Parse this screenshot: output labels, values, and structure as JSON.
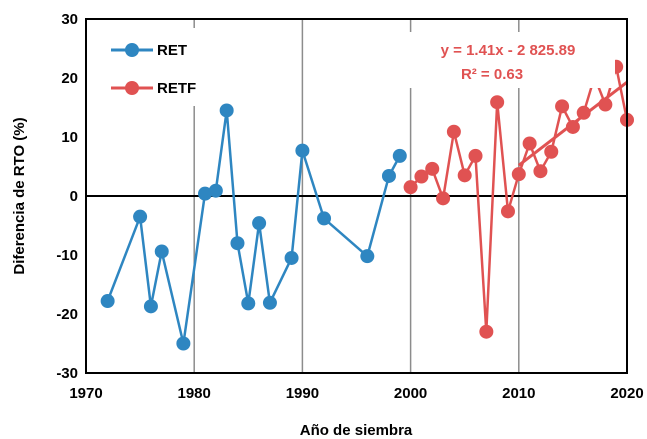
{
  "chart_data": {
    "type": "line",
    "xlabel": "Año de siembra",
    "ylabel": "Diferencia de RTO (%)",
    "xlim": [
      1970,
      2020
    ],
    "ylim": [
      -30,
      30
    ],
    "x_ticks": [
      1970,
      1980,
      1990,
      2000,
      2010,
      2020
    ],
    "y_ticks": [
      -30,
      -20,
      -10,
      0,
      10,
      20,
      30
    ],
    "grid": "vertical",
    "legend_position": "top-left",
    "series": [
      {
        "name": "RET",
        "color": "#2E86C1",
        "x": [
          1972,
          1975,
          1976,
          1977,
          1979,
          1981,
          1982,
          1983,
          1984,
          1985,
          1986,
          1987,
          1989,
          1990,
          1992,
          1996,
          1998,
          1999
        ],
        "y": [
          -17.8,
          -3.5,
          -18.7,
          -9.4,
          -25.0,
          0.4,
          0.9,
          14.5,
          -8.0,
          -18.2,
          -4.6,
          -18.1,
          -10.5,
          7.7,
          -3.8,
          -10.2,
          3.4,
          6.8
        ]
      },
      {
        "name": "RETF",
        "color": "#E05252",
        "x": [
          2000,
          2001,
          2002,
          2003,
          2004,
          2005,
          2006,
          2007,
          2008,
          2009,
          2010,
          2011,
          2012,
          2013,
          2014,
          2015,
          2016,
          2017,
          2018,
          2019,
          2020
        ],
        "y": [
          1.5,
          3.3,
          4.6,
          -0.4,
          10.9,
          3.5,
          6.8,
          -23.0,
          15.9,
          -2.6,
          3.7,
          8.9,
          4.2,
          7.5,
          15.2,
          11.7,
          14.1,
          20.2,
          15.5,
          21.9,
          12.9
        ]
      }
    ],
    "trendline": {
      "series": "RETF",
      "x": [
        2010,
        2020
      ],
      "y": [
        5.2,
        19.3
      ],
      "color": "#E05252",
      "equation": "y = 1.41x - 2 825.89",
      "r_squared": "R² = 0.63"
    }
  }
}
